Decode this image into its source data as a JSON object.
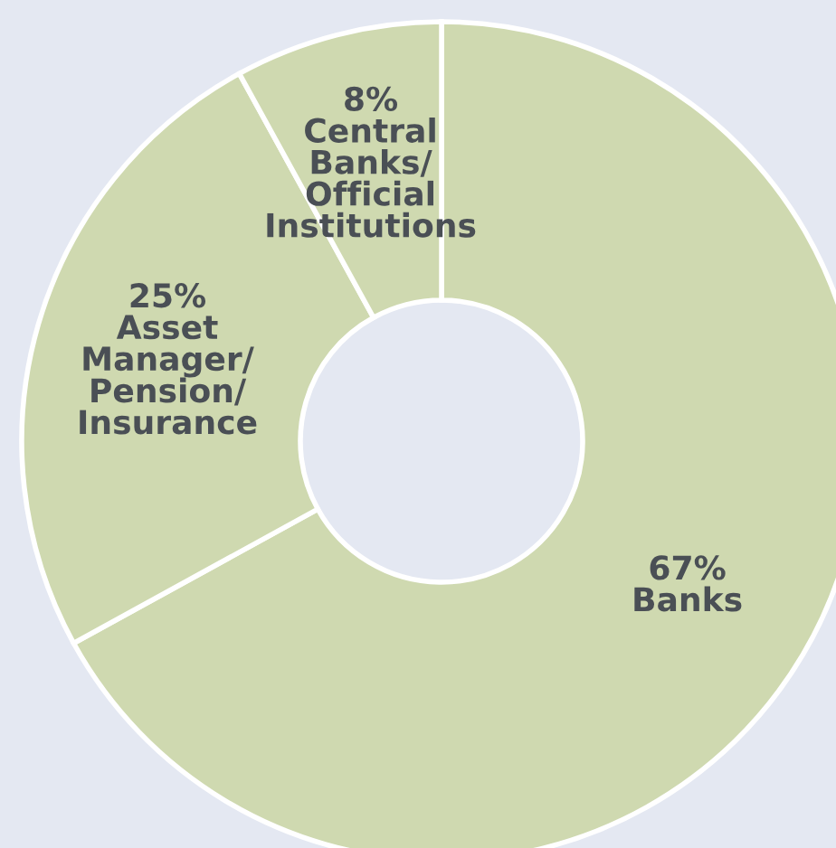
{
  "chart_data": {
    "type": "donut",
    "categories": [
      "Banks",
      "Asset\nManager/\nPension/\nInsurance",
      "Central\nBanks/\nOfficial\nInstitutions"
    ],
    "values": [
      67,
      25,
      8
    ],
    "value_labels": [
      "67%",
      "25%",
      "8%"
    ],
    "colors": [
      "#cfd9b0",
      "#cfd9b0",
      "#cfd9b0"
    ],
    "legend": false
  }
}
